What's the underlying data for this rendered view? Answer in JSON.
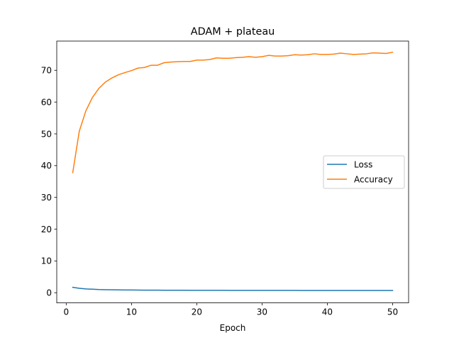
{
  "chart_data": {
    "type": "line",
    "title": "ADAM + plateau",
    "xlabel": "Epoch",
    "ylabel": "",
    "xlim": [
      -1.45,
      52.45
    ],
    "ylim": [
      -3.2,
      79.2
    ],
    "xticks": [
      0,
      10,
      20,
      30,
      40,
      50
    ],
    "yticks": [
      0,
      10,
      20,
      30,
      40,
      50,
      60,
      70
    ],
    "grid": false,
    "legend": {
      "position": "center-right"
    },
    "x": [
      1,
      2,
      3,
      4,
      5,
      6,
      7,
      8,
      9,
      10,
      11,
      12,
      13,
      14,
      15,
      16,
      17,
      18,
      19,
      20,
      21,
      22,
      23,
      24,
      25,
      26,
      27,
      28,
      29,
      30,
      31,
      32,
      33,
      34,
      35,
      36,
      37,
      38,
      39,
      40,
      41,
      42,
      43,
      44,
      45,
      46,
      47,
      48,
      49,
      50
    ],
    "series": [
      {
        "name": "Loss",
        "color": "#1f77b4",
        "values": [
          1.7,
          1.4,
          1.2,
          1.1,
          1.0,
          0.95,
          0.92,
          0.89,
          0.87,
          0.85,
          0.83,
          0.82,
          0.81,
          0.8,
          0.79,
          0.78,
          0.77,
          0.77,
          0.76,
          0.76,
          0.75,
          0.75,
          0.74,
          0.74,
          0.73,
          0.73,
          0.73,
          0.72,
          0.72,
          0.72,
          0.72,
          0.71,
          0.71,
          0.71,
          0.71,
          0.7,
          0.7,
          0.7,
          0.7,
          0.7,
          0.7,
          0.69,
          0.69,
          0.69,
          0.69,
          0.69,
          0.69,
          0.69,
          0.69,
          0.69
        ]
      },
      {
        "name": "Accuracy",
        "color": "#ff7f0e",
        "values": [
          37.8,
          50.8,
          57.2,
          61.4,
          64.3,
          66.3,
          67.6,
          68.6,
          69.3,
          69.9,
          70.7,
          70.9,
          71.6,
          71.6,
          72.4,
          72.6,
          72.7,
          72.8,
          72.8,
          73.2,
          73.2,
          73.4,
          73.9,
          73.8,
          73.8,
          74.0,
          74.1,
          74.3,
          74.1,
          74.3,
          74.7,
          74.5,
          74.5,
          74.6,
          74.9,
          74.8,
          74.9,
          75.2,
          75.0,
          75.0,
          75.1,
          75.4,
          75.2,
          75.0,
          75.1,
          75.2,
          75.5,
          75.4,
          75.3,
          75.7
        ]
      }
    ]
  }
}
